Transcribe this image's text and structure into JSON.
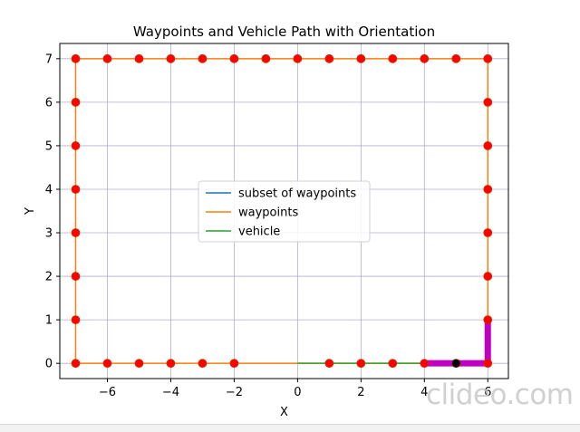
{
  "chart_data": {
    "type": "line",
    "title": "Waypoints and Vehicle Path with Orientation",
    "xlabel": "X",
    "ylabel": "Y",
    "xlim": [
      -7.5,
      6.65
    ],
    "ylim": [
      -0.35,
      7.35
    ],
    "xticks": [
      -6,
      -4,
      -2,
      0,
      2,
      4,
      6
    ],
    "yticks": [
      0,
      1,
      2,
      3,
      4,
      5,
      6,
      7
    ],
    "grid": true,
    "legend_placement": "center",
    "series": [
      {
        "name": "subset of waypoints",
        "color": "#1f77b4",
        "x": [],
        "y": []
      },
      {
        "name": "waypoints",
        "color": "#ff7f0e",
        "x": [
          0,
          -2,
          -7,
          -7,
          6,
          6,
          0
        ],
        "y": [
          0,
          0,
          0,
          7,
          7,
          0,
          0
        ]
      },
      {
        "name": "vehicle",
        "color": "#2ca02c",
        "x": [
          0,
          6
        ],
        "y": [
          0,
          0
        ]
      }
    ],
    "waypoint_markers": {
      "color": "#ff0000",
      "edge_color": "#cc3300",
      "points": [
        [
          -7,
          0
        ],
        [
          -6,
          0
        ],
        [
          -5,
          0
        ],
        [
          -4,
          0
        ],
        [
          -3,
          0
        ],
        [
          -2,
          0
        ],
        [
          1,
          0
        ],
        [
          2,
          0
        ],
        [
          3,
          0
        ],
        [
          4,
          0
        ],
        [
          5,
          0
        ],
        [
          6,
          0
        ],
        [
          -7,
          1
        ],
        [
          -7,
          2
        ],
        [
          -7,
          3
        ],
        [
          -7,
          4
        ],
        [
          -7,
          5
        ],
        [
          -7,
          6
        ],
        [
          -7,
          7
        ],
        [
          -6,
          7
        ],
        [
          -5,
          7
        ],
        [
          -4,
          7
        ],
        [
          -3,
          7
        ],
        [
          -2,
          7
        ],
        [
          -1,
          7
        ],
        [
          0,
          7
        ],
        [
          1,
          7
        ],
        [
          2,
          7
        ],
        [
          3,
          7
        ],
        [
          4,
          7
        ],
        [
          5,
          7
        ],
        [
          6,
          7
        ],
        [
          6,
          1
        ],
        [
          6,
          2
        ],
        [
          6,
          3
        ],
        [
          6,
          4
        ],
        [
          6,
          5
        ],
        [
          6,
          6
        ]
      ]
    },
    "orientation_path": {
      "color": "#c000c0",
      "x": [
        4,
        6,
        6
      ],
      "y": [
        0,
        0,
        1
      ]
    },
    "vehicle_marker": {
      "color": "#000000",
      "x": 5,
      "y": 0
    }
  },
  "watermark": "clideo.com"
}
